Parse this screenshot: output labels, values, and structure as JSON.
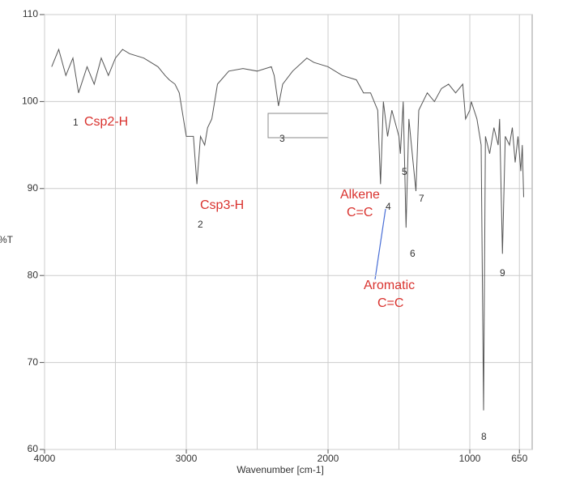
{
  "chart_data": {
    "type": "line",
    "xlabel": "Wavenumber [cm-1]",
    "ylabel": "%T",
    "xlim": [
      4000,
      560
    ],
    "ylim": [
      60,
      110
    ],
    "xticks": [
      4000,
      3000,
      2000,
      1000,
      650
    ],
    "x_grid_minor": [
      3500,
      2500,
      1500
    ],
    "yticks": [
      60,
      70,
      80,
      90,
      100,
      110
    ],
    "grid": true,
    "series": [
      {
        "color": "#555555",
        "x": [
          3950,
          3900,
          3850,
          3800,
          3760,
          3700,
          3650,
          3600,
          3550,
          3500,
          3450,
          3400,
          3300,
          3200,
          3150,
          3120,
          3080,
          3050,
          3020,
          3000,
          2950,
          2925,
          2900,
          2870,
          2850,
          2820,
          2780,
          2700,
          2600,
          2500,
          2400,
          2380,
          2350,
          2320,
          2250,
          2150,
          2100,
          2000,
          1900,
          1800,
          1750,
          1700,
          1650,
          1630,
          1610,
          1580,
          1550,
          1500,
          1490,
          1470,
          1450,
          1430,
          1400,
          1380,
          1360,
          1300,
          1250,
          1200,
          1150,
          1100,
          1050,
          1030,
          1000,
          990,
          950,
          920,
          903,
          890,
          860,
          830,
          800,
          790,
          770,
          750,
          720,
          700,
          680,
          660,
          640,
          630,
          620
        ],
        "values": [
          104,
          106,
          103,
          105,
          101,
          104,
          102,
          105,
          103,
          105,
          106,
          105.5,
          105,
          104,
          103,
          102.5,
          102,
          101,
          98,
          96,
          96,
          90.5,
          96,
          95,
          97,
          98,
          102,
          103.5,
          103.8,
          103.5,
          104,
          103,
          99.5,
          102,
          103.5,
          105,
          104.5,
          104,
          103,
          102.5,
          101,
          101,
          99,
          90.5,
          100,
          96,
          99,
          96,
          94,
          100,
          85.5,
          98,
          93,
          89.7,
          99,
          101,
          100,
          101.5,
          102,
          101,
          102,
          98,
          99,
          100,
          98,
          95,
          64.5,
          96,
          94,
          97,
          95,
          98,
          82.5,
          96,
          95,
          97,
          93,
          96,
          92,
          95,
          89
        ]
      }
    ],
    "annotations": [
      "1",
      "Csp2-H",
      "Csp3-H",
      "2",
      "3",
      "Alkene",
      "C=C",
      "4",
      "5",
      "6",
      "7",
      "8",
      "9",
      "Aromatic",
      "C=C"
    ]
  }
}
